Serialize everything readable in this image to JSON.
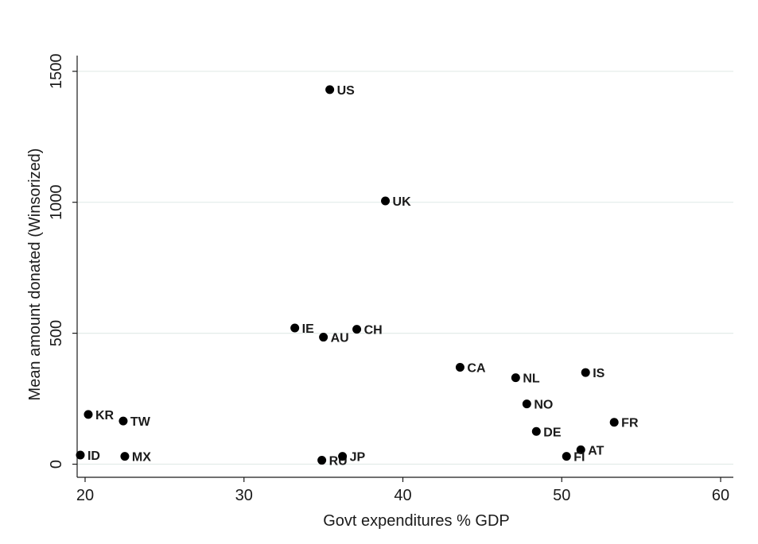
{
  "chart_data": {
    "type": "scatter",
    "title": "",
    "xlabel": "Govt expenditures % GDP",
    "ylabel": "Mean amount donated (Winsorized)",
    "xlim": [
      19.5,
      60.8
    ],
    "ylim": [
      -50,
      1560
    ],
    "xticks": [
      20,
      30,
      40,
      50,
      60
    ],
    "yticks": [
      0,
      500,
      1000,
      1500
    ],
    "grid": "horizontal",
    "marker_color": "#000000",
    "gridline_color": "#e3ece9",
    "points": [
      {
        "label": "US",
        "x": 35.4,
        "y": 1430
      },
      {
        "label": "UK",
        "x": 38.9,
        "y": 1005
      },
      {
        "label": "IE",
        "x": 33.2,
        "y": 520
      },
      {
        "label": "AU",
        "x": 35.0,
        "y": 485
      },
      {
        "label": "CH",
        "x": 37.1,
        "y": 515
      },
      {
        "label": "CA",
        "x": 43.6,
        "y": 370
      },
      {
        "label": "NL",
        "x": 47.1,
        "y": 330
      },
      {
        "label": "IS",
        "x": 51.5,
        "y": 350
      },
      {
        "label": "NO",
        "x": 47.8,
        "y": 230
      },
      {
        "label": "FR",
        "x": 53.3,
        "y": 160
      },
      {
        "label": "DE",
        "x": 48.4,
        "y": 125
      },
      {
        "label": "AT",
        "x": 51.2,
        "y": 55
      },
      {
        "label": "FI",
        "x": 50.3,
        "y": 30
      },
      {
        "label": "KR",
        "x": 20.2,
        "y": 190
      },
      {
        "label": "TW",
        "x": 22.4,
        "y": 165
      },
      {
        "label": "ID",
        "x": 19.7,
        "y": 35
      },
      {
        "label": "MX",
        "x": 22.5,
        "y": 30
      },
      {
        "label": "RU",
        "x": 34.9,
        "y": 15
      },
      {
        "label": "JP",
        "x": 36.2,
        "y": 30
      }
    ]
  }
}
